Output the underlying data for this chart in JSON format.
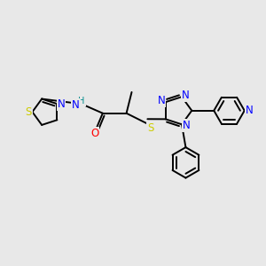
{
  "bg_color": "#e8e8e8",
  "atom_colors": {
    "C": "#000000",
    "N": "#0000ff",
    "O": "#ff0000",
    "S": "#cccc00",
    "H": "#008b8b"
  },
  "bond_color": "#000000",
  "bond_width": 1.4,
  "font_size_atom": 8.5,
  "font_size_small": 7.5
}
